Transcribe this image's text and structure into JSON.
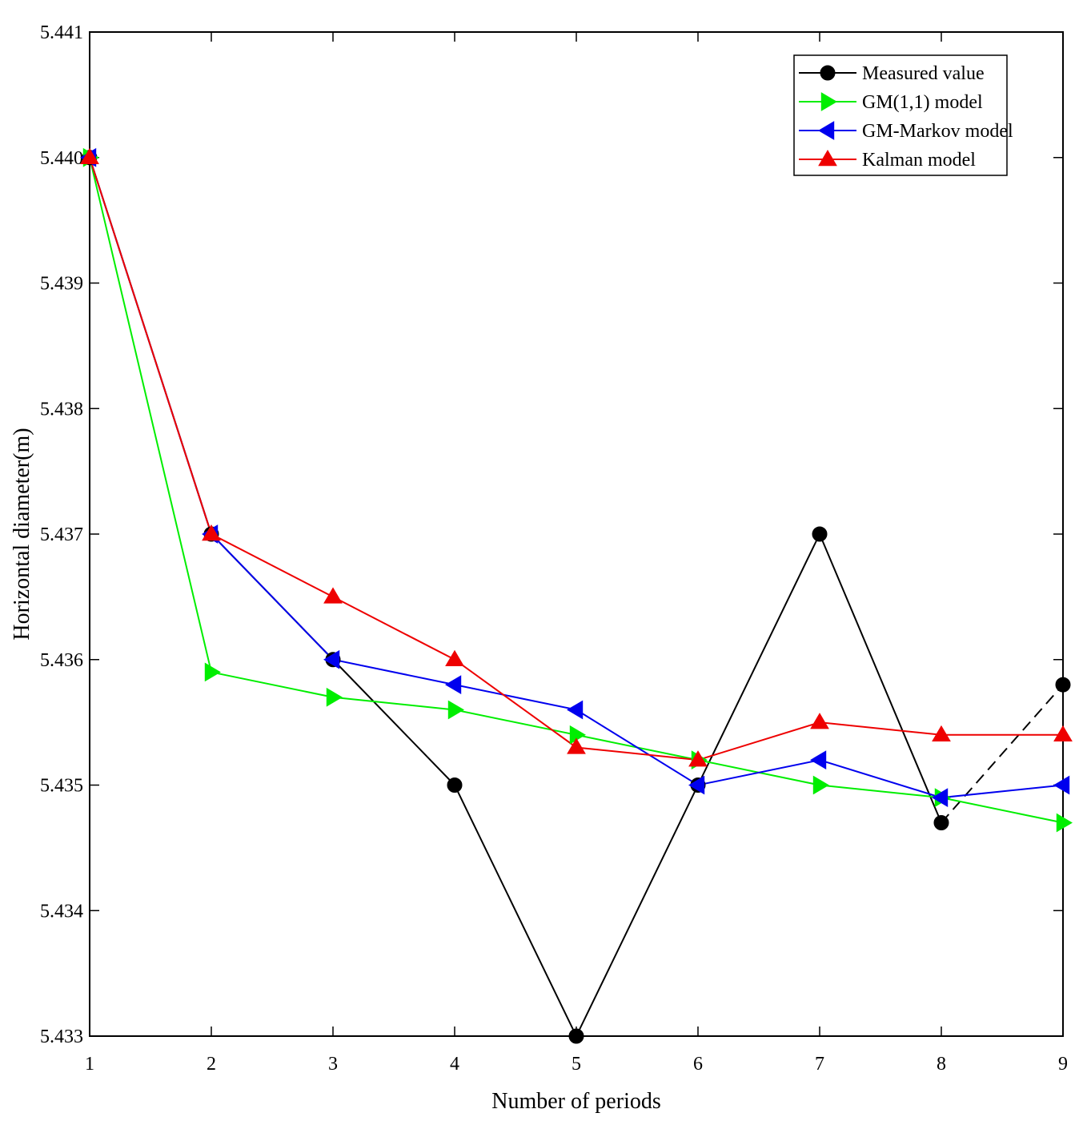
{
  "chart_data": {
    "type": "line",
    "title": "",
    "xlabel": "Number of periods",
    "ylabel": "Horizontal diameter(m)",
    "xlim": [
      1,
      9
    ],
    "ylim": [
      5.433,
      5.441
    ],
    "x": [
      1,
      2,
      3,
      4,
      5,
      6,
      7,
      8,
      9
    ],
    "xticks": [
      "1",
      "2",
      "3",
      "4",
      "5",
      "6",
      "7",
      "8",
      "9"
    ],
    "yticks": [
      "5.433",
      "5.434",
      "5.435",
      "5.436",
      "5.437",
      "5.438",
      "5.439",
      "5.440",
      "5.441"
    ],
    "grid": false,
    "legend_position": "top-right",
    "series": [
      {
        "name": "Measured value",
        "color": "#000000",
        "marker": "circle",
        "values": [
          5.44,
          5.437,
          5.436,
          5.435,
          5.433,
          5.435,
          5.437,
          5.4347,
          5.4358
        ],
        "dashed_last_segment": true
      },
      {
        "name": "GM(1,1) model",
        "color": "#00ee00",
        "marker": "triangle-right",
        "values": [
          5.44,
          5.4359,
          5.4357,
          5.4356,
          5.4354,
          5.4352,
          5.435,
          5.4349,
          5.4347
        ]
      },
      {
        "name": "GM-Markov model",
        "color": "#0000ee",
        "marker": "triangle-left",
        "values": [
          5.44,
          5.437,
          5.436,
          5.4358,
          5.4356,
          5.435,
          5.4352,
          5.4349,
          5.435
        ]
      },
      {
        "name": "Kalman model",
        "color": "#ee0000",
        "marker": "triangle-up",
        "values": [
          5.44,
          5.437,
          5.4365,
          5.436,
          5.4353,
          5.4352,
          5.4355,
          5.4354,
          5.4354
        ]
      }
    ]
  }
}
